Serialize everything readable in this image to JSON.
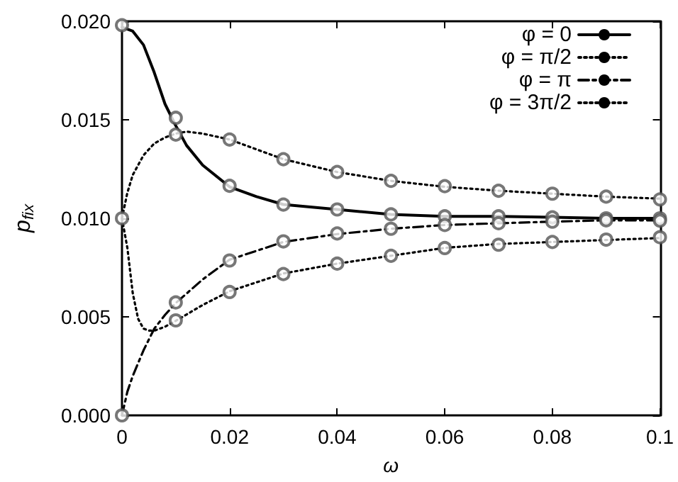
{
  "chart_data": {
    "type": "line",
    "xlabel": "ω",
    "ylabel": "p$_{fix}$",
    "xlim": [
      0,
      0.1
    ],
    "xticks": [
      0,
      0.02,
      0.04,
      0.06,
      0.08,
      0.1
    ],
    "ylim": [
      0,
      0.02
    ],
    "yticks": [
      {
        "value": 0,
        "label": "0.000"
      },
      {
        "value": 0.005,
        "label": "0.005"
      },
      {
        "value": 0.01,
        "label": "0.010"
      },
      {
        "value": 0.015,
        "label": "0.015"
      },
      {
        "value": 0.02,
        "label": "0.020"
      }
    ],
    "grid": false,
    "legend": "top right",
    "marker": "none",
    "series": [
      {
        "name": "φ = 0",
        "color": "#000000",
        "line_style": "solid",
        "x": [
          0,
          0.002,
          0.004,
          0.006,
          0.008,
          0.01,
          0.012,
          0.015,
          0.02,
          0.025,
          0.03,
          0.04,
          0.05,
          0.06,
          0.07,
          0.08,
          0.09,
          0.1
        ],
        "values": [
          0.0197,
          0.0195,
          0.0188,
          0.0174,
          0.0158,
          0.0147,
          0.0137,
          0.0127,
          0.0116,
          0.0111,
          0.0107,
          0.01045,
          0.0102,
          0.0101,
          0.0101,
          0.01005,
          0.01,
          0.01
        ]
      },
      {
        "name": "φ = π/2",
        "color": "#000000",
        "line_style": "dotted",
        "x": [
          0,
          0.001,
          0.002,
          0.003,
          0.004,
          0.005,
          0.006,
          0.008,
          0.01,
          0.015,
          0.02,
          0.03,
          0.04,
          0.05,
          0.06,
          0.07,
          0.08,
          0.09,
          0.1
        ],
        "values": [
          0.01,
          0.0085,
          0.0062,
          0.0049,
          0.0044,
          0.0043,
          0.0043,
          0.0045,
          0.0048,
          0.0056,
          0.0063,
          0.0072,
          0.0077,
          0.0081,
          0.0085,
          0.0087,
          0.0088,
          0.0089,
          0.009
        ]
      },
      {
        "name": "φ = π",
        "color": "#000000",
        "line_style": "dashed",
        "x": [
          0,
          0.001,
          0.002,
          0.004,
          0.006,
          0.008,
          0.01,
          0.015,
          0.02,
          0.03,
          0.04,
          0.05,
          0.06,
          0.07,
          0.08,
          0.09,
          0.1
        ],
        "values": [
          0,
          0.0012,
          0.002,
          0.0033,
          0.0044,
          0.0051,
          0.0057,
          0.0069,
          0.0079,
          0.0088,
          0.0092,
          0.00947,
          0.00966,
          0.00975,
          0.00983,
          0.0099,
          0.0099
        ]
      },
      {
        "name": "φ = 3π/2",
        "color": "#000000",
        "line_style": "dotted",
        "x": [
          0,
          0.001,
          0.002,
          0.004,
          0.006,
          0.008,
          0.01,
          0.012,
          0.015,
          0.02,
          0.03,
          0.04,
          0.05,
          0.06,
          0.07,
          0.08,
          0.09,
          0.1
        ],
        "values": [
          0.01,
          0.0113,
          0.0122,
          0.0132,
          0.0138,
          0.0141,
          0.0143,
          0.0144,
          0.0143,
          0.014,
          0.013,
          0.01235,
          0.0119,
          0.0116,
          0.0114,
          0.01125,
          0.0111,
          0.011
        ]
      },
      {
        "type": "scatter",
        "marker": "circle",
        "color": "#555555",
        "x": [
          0,
          0.01,
          0.02,
          0.03,
          0.04,
          0.05,
          0.06,
          0.07,
          0.08,
          0.09,
          0.1
        ],
        "values": [
          0.0198,
          0.0151,
          0.01165,
          0.0107,
          0.01045,
          0.0102,
          0.0101,
          0.0101,
          0.01005,
          0.01,
          0.01
        ]
      },
      {
        "type": "scatter",
        "marker": "circle",
        "color": "#555555",
        "x": [
          0,
          0.01,
          0.02,
          0.03,
          0.04,
          0.05,
          0.06,
          0.07,
          0.08,
          0.09,
          0.1
        ],
        "values": [
          0.01,
          0.00482,
          0.00626,
          0.00717,
          0.0077,
          0.0081,
          0.00849,
          0.00866,
          0.0088,
          0.00892,
          0.00904
        ]
      },
      {
        "type": "scatter",
        "marker": "circle",
        "color": "#555555",
        "x": [
          0,
          0.01,
          0.02,
          0.03,
          0.04,
          0.05,
          0.06,
          0.07,
          0.08,
          0.09,
          0.1
        ],
        "values": [
          0,
          0.00573,
          0.00786,
          0.00883,
          0.00923,
          0.00947,
          0.00966,
          0.00975,
          0.00983,
          0.0099,
          0.00988
        ]
      },
      {
        "type": "scatter",
        "marker": "circle",
        "color": "#555555",
        "x": [
          0.01,
          0.02,
          0.03,
          0.04,
          0.05,
          0.06,
          0.07,
          0.08,
          0.09,
          0.1
        ],
        "values": [
          0.01425,
          0.014,
          0.013,
          0.01235,
          0.0119,
          0.01163,
          0.0114,
          0.01125,
          0.0111,
          0.01096
        ]
      }
    ]
  }
}
